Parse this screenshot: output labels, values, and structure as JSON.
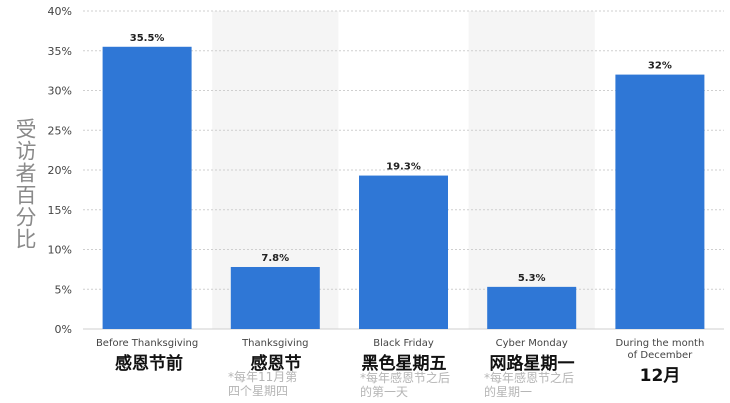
{
  "chart_data": {
    "type": "bar",
    "categories": [
      "Before Thanksgiving",
      "Thanksgiving",
      "Black Friday",
      "Cyber Monday",
      "During the month of December"
    ],
    "values": [
      35.5,
      7.8,
      19.3,
      5.3,
      32
    ],
    "value_labels": [
      "35.5%",
      "7.8%",
      "19.3%",
      "5.3%",
      "32%"
    ],
    "y_ticks": [
      "0%",
      "5%",
      "10%",
      "15%",
      "20%",
      "25%",
      "30%",
      "35%",
      "40%"
    ],
    "ylim": [
      0,
      40
    ],
    "ylabel": "受访者百分比",
    "grid": true,
    "colors": {
      "bar": "#2f77d6",
      "band": "#ececec",
      "grid": "#cfcfcf",
      "axis_text": "#444444"
    }
  },
  "annotations": [
    {
      "cn_label": "感恩节前",
      "note": ""
    },
    {
      "cn_label": "感恩节",
      "note": "*每年11月第四个星期四"
    },
    {
      "cn_label": "黑色星期五",
      "note": "*每年感恩节之后的第一天"
    },
    {
      "cn_label": "网路星期一",
      "note": "*每年感恩节之后的星期一"
    },
    {
      "cn_label": "12月",
      "note": ""
    }
  ]
}
